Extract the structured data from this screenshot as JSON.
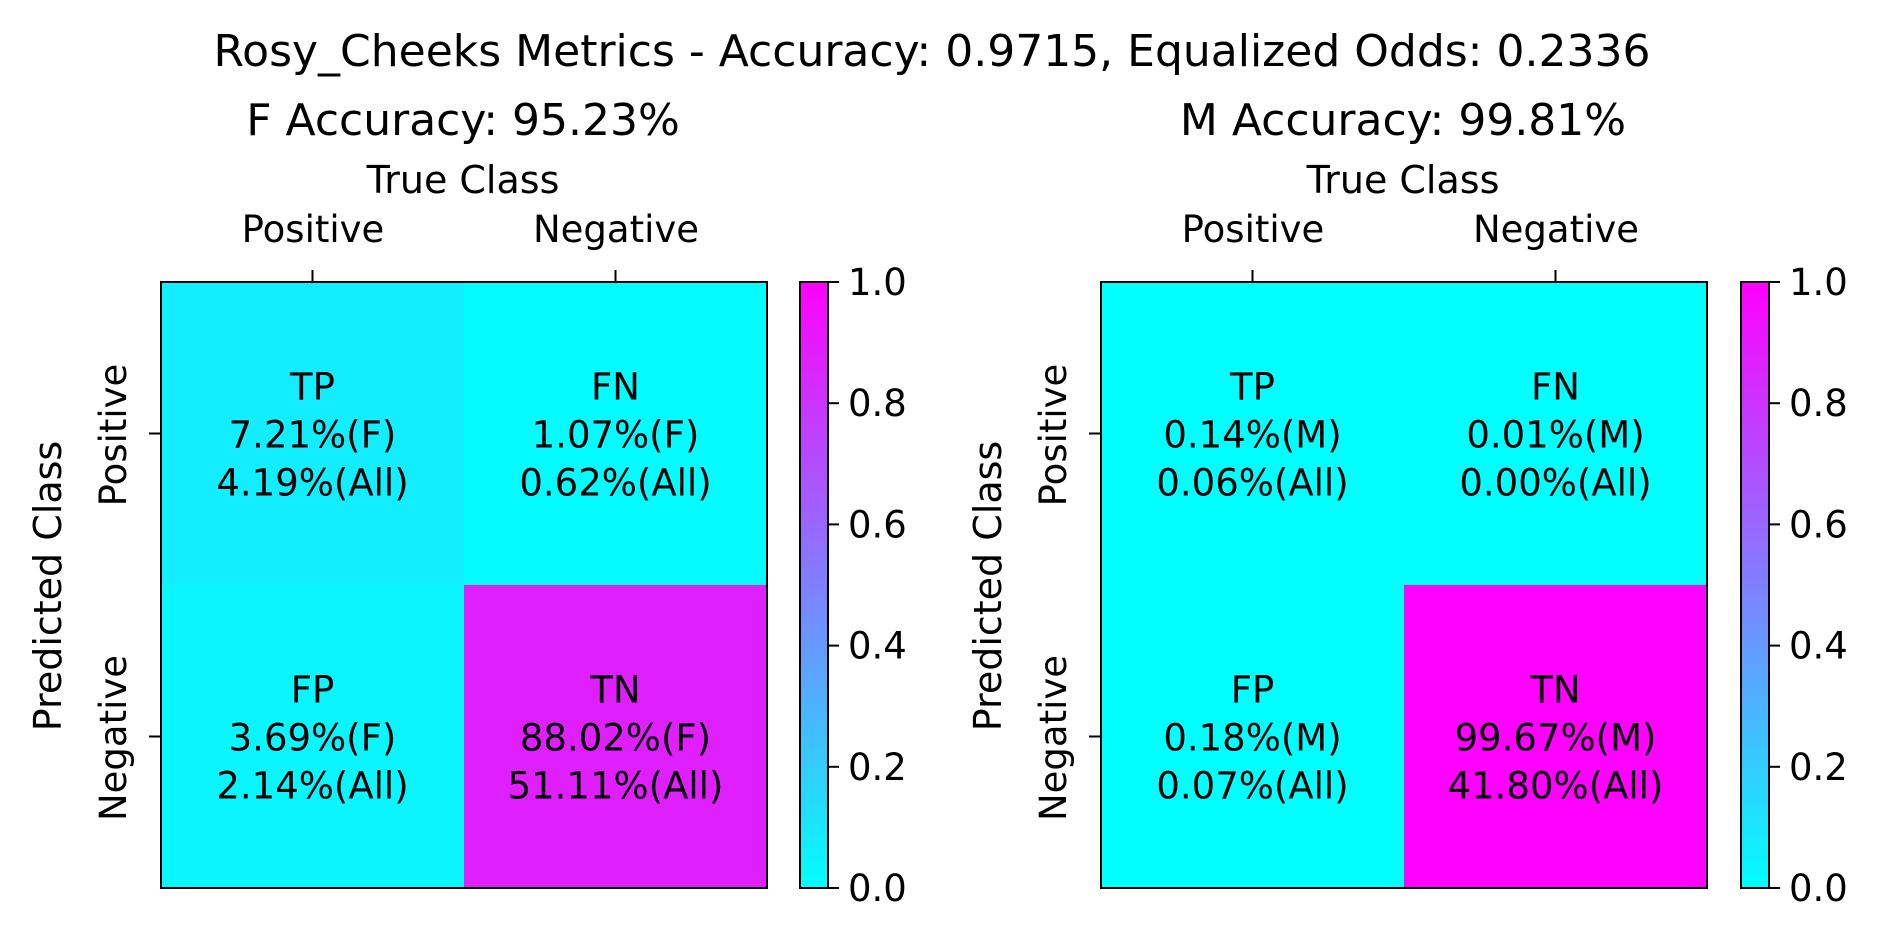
{
  "suptitle": "Rosy_Cheeks Metrics - Accuracy: 0.9715, Equalized Odds: 0.2336",
  "colorbar": {
    "ticks": [
      "0.0",
      "0.2",
      "0.4",
      "0.6",
      "0.8",
      "1.0"
    ],
    "min_color": "#00ffff",
    "max_color": "#ff00ff"
  },
  "panels": [
    {
      "title": "F Accuracy: 95.23%",
      "xlabel": "True Class",
      "ylabel": "Predicted Class",
      "xticks": [
        "Positive",
        "Negative"
      ],
      "yticks": [
        "Positive",
        "Negative"
      ],
      "cells": [
        {
          "label": "TP",
          "group": "7.21%(F)",
          "all": "4.19%(All)",
          "value": 0.0721
        },
        {
          "label": "FN",
          "group": "1.07%(F)",
          "all": "0.62%(All)",
          "value": 0.0107
        },
        {
          "label": "FP",
          "group": "3.69%(F)",
          "all": "2.14%(All)",
          "value": 0.0369
        },
        {
          "label": "TN",
          "group": "88.02%(F)",
          "all": "51.11%(All)",
          "value": 0.8802
        }
      ]
    },
    {
      "title": "M Accuracy: 99.81%",
      "xlabel": "True Class",
      "ylabel": "Predicted Class",
      "xticks": [
        "Positive",
        "Negative"
      ],
      "yticks": [
        "Positive",
        "Negative"
      ],
      "cells": [
        {
          "label": "TP",
          "group": "0.14%(M)",
          "all": "0.06%(All)",
          "value": 0.0014
        },
        {
          "label": "FN",
          "group": "0.01%(M)",
          "all": "0.00%(All)",
          "value": 0.0001
        },
        {
          "label": "FP",
          "group": "0.18%(M)",
          "all": "0.07%(All)",
          "value": 0.0018
        },
        {
          "label": "TN",
          "group": "99.67%(M)",
          "all": "41.80%(All)",
          "value": 0.9967
        }
      ]
    }
  ],
  "chart_data": [
    {
      "type": "heatmap",
      "title": "F Accuracy: 95.23%",
      "xlabel": "True Class",
      "ylabel": "Predicted Class",
      "x": [
        "Positive",
        "Negative"
      ],
      "y": [
        "Positive",
        "Negative"
      ],
      "values": [
        [
          0.0721,
          0.0107
        ],
        [
          0.0369,
          0.8802
        ]
      ],
      "annotations": [
        [
          "TP 7.21%(F) 4.19%(All)",
          "FN 1.07%(F) 0.62%(All)"
        ],
        [
          "FP 3.69%(F) 2.14%(All)",
          "TN 88.02%(F) 51.11%(All)"
        ]
      ],
      "colorbar_range": [
        0,
        1
      ],
      "colormap": "cool"
    },
    {
      "type": "heatmap",
      "title": "M Accuracy: 99.81%",
      "xlabel": "True Class",
      "ylabel": "Predicted Class",
      "x": [
        "Positive",
        "Negative"
      ],
      "y": [
        "Positive",
        "Negative"
      ],
      "values": [
        [
          0.0014,
          0.0001
        ],
        [
          0.0018,
          0.9967
        ]
      ],
      "annotations": [
        [
          "TP 0.14%(M) 0.06%(All)",
          "FN 0.01%(M) 0.00%(All)"
        ],
        [
          "FP 0.18%(M) 0.07%(All)",
          "TN 99.67%(M) 41.80%(All)"
        ]
      ],
      "colorbar_range": [
        0,
        1
      ],
      "colormap": "cool"
    }
  ]
}
